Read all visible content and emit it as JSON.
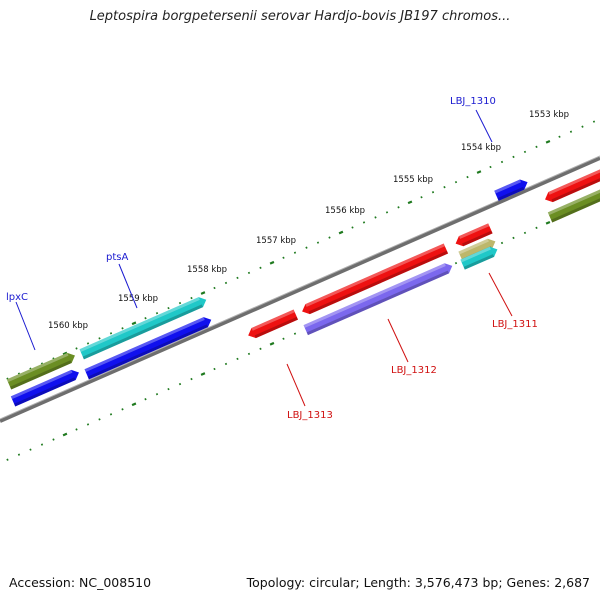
{
  "title": "Leptospira borgpetersenii serovar Hardjo-bovis JB197 chromos...",
  "footer": {
    "accession": "Accession: NC_008510",
    "topology": "Topology: circular; Length: 3,576,473 bp; Genes: 2,687"
  },
  "ticks": [
    {
      "label": "1553 kbp",
      "kbp": 1553
    },
    {
      "label": "1554 kbp",
      "kbp": 1554
    },
    {
      "label": "1555 kbp",
      "kbp": 1555
    },
    {
      "label": "1556 kbp",
      "kbp": 1556
    },
    {
      "label": "1557 kbp",
      "kbp": 1557
    },
    {
      "label": "1558 kbp",
      "kbp": 1558
    },
    {
      "label": "1559 kbp",
      "kbp": 1559
    },
    {
      "label": "1560 kbp",
      "kbp": 1560
    }
  ],
  "gene_labels": [
    {
      "text": "LBJ_1310",
      "color": "#1a1ad0"
    },
    {
      "text": "ptsA",
      "color": "#1a1ad0"
    },
    {
      "text": "lpxC",
      "color": "#1a1ad0"
    },
    {
      "text": "LBJ_1311",
      "color": "#d01010"
    },
    {
      "text": "LBJ_1312",
      "color": "#d01010"
    },
    {
      "text": "LBJ_1313",
      "color": "#d01010"
    }
  ],
  "colors": {
    "backbone": "#808080",
    "tick": "#1f7a1f",
    "red_feature": "#ee1111",
    "blue_feature": "#1010ee",
    "cyan_feature": "#20c8c8",
    "olive_feature": "#6b8e23",
    "purple_feature": "#7b68ee",
    "khaki_feature": "#bdb76b"
  }
}
